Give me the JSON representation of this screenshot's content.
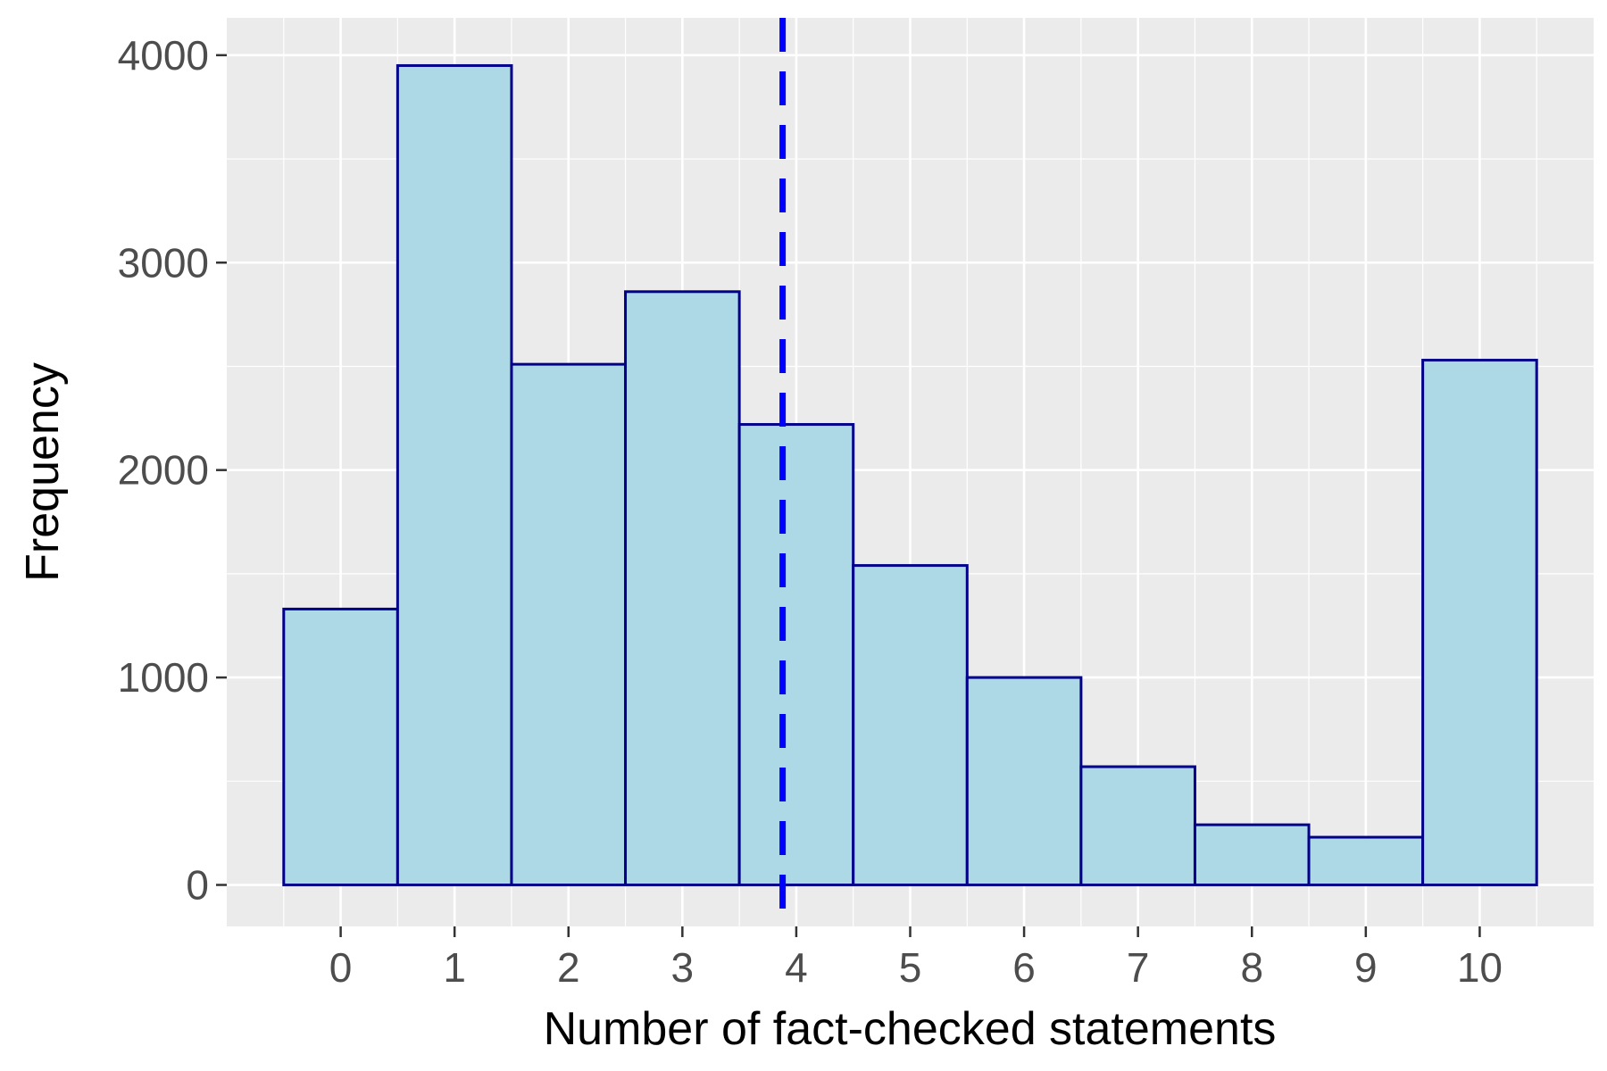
{
  "chart_data": {
    "type": "bar",
    "title": "",
    "xlabel": "Number of fact-checked statements",
    "ylabel": "Frequency",
    "categories": [
      "0",
      "1",
      "2",
      "3",
      "4",
      "5",
      "6",
      "7",
      "8",
      "9",
      "10"
    ],
    "values": [
      1330,
      3950,
      2510,
      2860,
      2220,
      1540,
      1000,
      570,
      290,
      230,
      2530
    ],
    "xlim": [
      -1,
      11
    ],
    "ylim": [
      -200,
      4180
    ],
    "yticks": [
      "0",
      "1000",
      "2000",
      "3000",
      "4000"
    ],
    "reference_line": {
      "x": 3.88,
      "style": "dashed",
      "color": "#0000ff"
    },
    "bar_fill": "#add8e6",
    "bar_stroke": "#00008b",
    "panel_background": "#ebebeb",
    "grid": true,
    "legend": "none"
  }
}
